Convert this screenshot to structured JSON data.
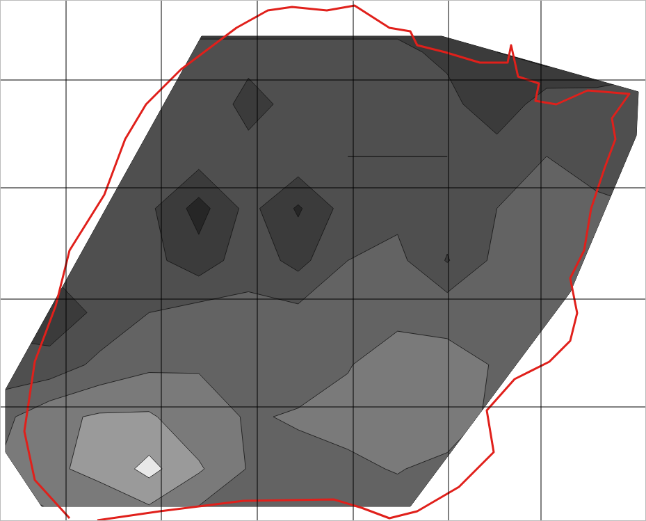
{
  "chart_data": {
    "type": "contour",
    "xlim": [
      0,
      929
    ],
    "ylim": [
      0,
      749
    ],
    "xticks": [
      95,
      232,
      370,
      508,
      645,
      778
    ],
    "yticks": [
      115,
      270,
      430,
      585
    ],
    "grid": true,
    "tick_labels": false,
    "z": [
      [
        1.5,
        1.5,
        1.5,
        1.5,
        1.5,
        1.5,
        1.5,
        1.5,
        1.5,
        1.5,
        1.5,
        1.5,
        1.5,
        1.5
      ],
      [
        3,
        3,
        3,
        3,
        2.5,
        2.5,
        2.5,
        2.5,
        2.5,
        2,
        1.5,
        1,
        1.5,
        2
      ],
      [
        3,
        3,
        3,
        3,
        2.8,
        2,
        2.5,
        2.8,
        2.5,
        2.6,
        1.5,
        2.8,
        2.6,
        2.5
      ],
      [
        3,
        3,
        3,
        2.6,
        2.6,
        2.5,
        2.8,
        3,
        3,
        3,
        2.8,
        3,
        2.6,
        2.5
      ],
      [
        2.8,
        2.8,
        2.8,
        2.4,
        1.2,
        2.5,
        1.4,
        2.6,
        2.8,
        2.6,
        3,
        3,
        3.2,
        3
      ],
      [
        2.4,
        2.4,
        2.6,
        2.5,
        1.8,
        2.7,
        2,
        3,
        3.2,
        2.2,
        3.2,
        3.3,
        3.4,
        3
      ],
      [
        2,
        1.8,
        2.4,
        3,
        3.3,
        3.2,
        3.2,
        3,
        3.5,
        3.5,
        3.3,
        3.6,
        3.6,
        3
      ],
      [
        2.5,
        2.5,
        3.2,
        3.6,
        3.7,
        3.3,
        3.5,
        3.7,
        4.2,
        4,
        3.7,
        3.5,
        3.2,
        3
      ],
      [
        3.5,
        4.3,
        4.6,
        4.6,
        4,
        3.7,
        3.8,
        4,
        4.3,
        4.3,
        3.5,
        3.2,
        3,
        3
      ],
      [
        3.8,
        4.3,
        4.8,
        6.5,
        4.6,
        3.7,
        3.6,
        3.6,
        3.8,
        3.5,
        3.3,
        3,
        3,
        3
      ],
      [
        3.6,
        3.6,
        3.6,
        3.6,
        3.4,
        3.4,
        3.4,
        3.3,
        3.3,
        3.2,
        3,
        3,
        3,
        3
      ]
    ],
    "z_thresholds": [
      1.5,
      2.25,
      3.0,
      3.75,
      4.5,
      6
    ],
    "colors": [
      "#262626",
      "#3b3b3b",
      "#4f4f4f",
      "#636363",
      "#7a7a7a",
      "#9a9a9a",
      "#e8e8e8"
    ],
    "surface": {
      "x": [
        290,
        635,
        918,
        915,
        820,
        590,
        60,
        8,
        8
      ],
      "y": [
        52,
        52,
        132,
        195,
        420,
        728,
        728,
        650,
        560
      ]
    },
    "outline": {
      "color": "#e0201b",
      "x": [
        100,
        50,
        35,
        50,
        80,
        100,
        150,
        180,
        210,
        260,
        300,
        340,
        385,
        420,
        470,
        510,
        560,
        590,
        600,
        640,
        690,
        730,
        735,
        745,
        775,
        770,
        800,
        845,
        905,
        880,
        885,
        870,
        850,
        840,
        820,
        830,
        820,
        790,
        740,
        700,
        710,
        660,
        600,
        560,
        520,
        480,
        350,
        230,
        140
      ],
      "y": [
        745,
        690,
        620,
        520,
        440,
        360,
        280,
        200,
        150,
        100,
        70,
        40,
        15,
        10,
        15,
        8,
        40,
        45,
        65,
        75,
        90,
        90,
        65,
        110,
        120,
        145,
        150,
        130,
        135,
        170,
        200,
        240,
        300,
        360,
        400,
        450,
        490,
        520,
        545,
        590,
        650,
        700,
        735,
        745,
        730,
        718,
        720,
        735,
        748
      ]
    }
  }
}
